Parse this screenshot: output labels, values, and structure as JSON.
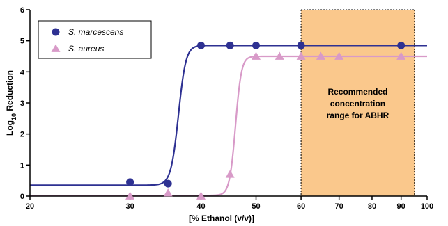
{
  "chart_data": {
    "type": "line",
    "xlabel": "[% Ethanol (v/v)]",
    "ylabel_main": "Log",
    "ylabel_sub": "10",
    "ylabel_rest": " Reduction",
    "xticks": [
      20,
      30,
      40,
      50,
      60,
      70,
      80,
      90,
      100
    ],
    "yticks": [
      0,
      1,
      2,
      3,
      4,
      5,
      6
    ],
    "xlim": [
      20,
      100
    ],
    "ylim": [
      0,
      6
    ],
    "grid": false,
    "legend_position": "top-left",
    "recommended_range": {
      "x_start": 60,
      "x_end": 95,
      "text": [
        "Recommended",
        "concentration",
        "range for ABHR"
      ]
    },
    "series": [
      {
        "name": "S. marcescens",
        "marker": "circle",
        "color": "#2e3192",
        "points": [
          [
            30,
            0.45
          ],
          [
            35,
            0.4
          ],
          [
            40,
            4.85
          ],
          [
            45,
            4.85
          ],
          [
            50,
            4.85
          ],
          [
            60,
            4.85
          ],
          [
            90,
            4.85
          ]
        ],
        "fit": {
          "bottom": 0.35,
          "top": 4.85,
          "midpoint": 36.5,
          "slope": 1.8
        }
      },
      {
        "name": "S. aureus",
        "marker": "triangle",
        "color": "#d89ac8",
        "points": [
          [
            30,
            0.0
          ],
          [
            35,
            0.1
          ],
          [
            40,
            0.0
          ],
          [
            45,
            0.7
          ],
          [
            50,
            4.5
          ],
          [
            55,
            4.5
          ],
          [
            60,
            4.5
          ],
          [
            65,
            4.5
          ],
          [
            70,
            4.5
          ],
          [
            90,
            4.5
          ]
        ],
        "fit": {
          "bottom": 0.02,
          "top": 4.5,
          "midpoint": 46.0,
          "slope": 1.8
        }
      }
    ]
  }
}
